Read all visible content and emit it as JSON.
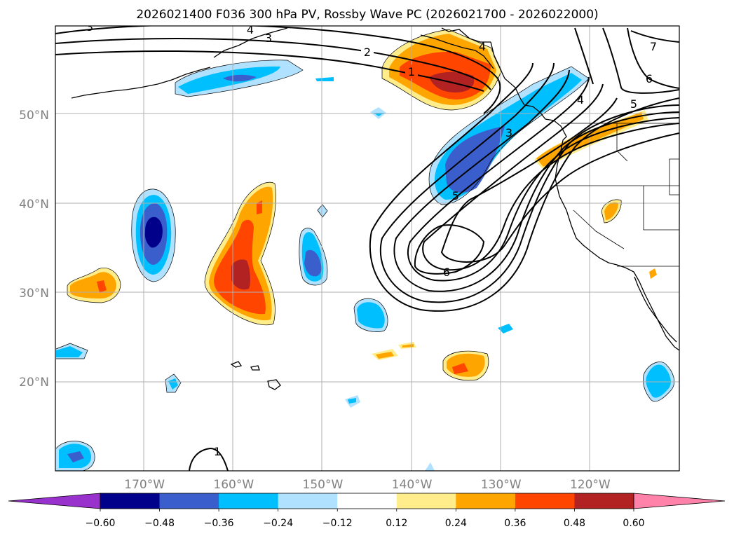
{
  "chart_data": {
    "type": "map",
    "title": "2026021400 F036 300 hPa PV, Rossby Wave PC (2026021700 - 2026022000)",
    "lat_ticks": [
      {
        "value": 50,
        "label": "50°N"
      },
      {
        "value": 40,
        "label": "40°N"
      },
      {
        "value": 30,
        "label": "30°N"
      },
      {
        "value": 20,
        "label": "20°N"
      }
    ],
    "lon_ticks": [
      {
        "value": -170,
        "label": "170°W"
      },
      {
        "value": -160,
        "label": "160°W"
      },
      {
        "value": -150,
        "label": "150°W"
      },
      {
        "value": -140,
        "label": "140°W"
      },
      {
        "value": -130,
        "label": "130°W"
      },
      {
        "value": -120,
        "label": "120°W"
      }
    ],
    "contour_labels": [
      "1",
      "2",
      "3",
      "4",
      "5",
      "6",
      "7"
    ],
    "colorbar": {
      "ticks": [
        "−0.60",
        "−0.48",
        "−0.36",
        "−0.24",
        "−0.12",
        "0.12",
        "0.24",
        "0.36",
        "0.48",
        "0.60"
      ],
      "levels": [
        -0.72,
        -0.6,
        -0.48,
        -0.36,
        -0.24,
        -0.12,
        0.12,
        0.24,
        0.36,
        0.48,
        0.6,
        0.72
      ],
      "colors": [
        "#9932CC",
        "#00008B",
        "#3A5FCD",
        "#00BFFF",
        "#B0E2FF",
        "#FFFFFF",
        "#FFEC8B",
        "#FFA500",
        "#FF4500",
        "#B22222",
        "#FF82AB"
      ],
      "extend": "both"
    }
  }
}
